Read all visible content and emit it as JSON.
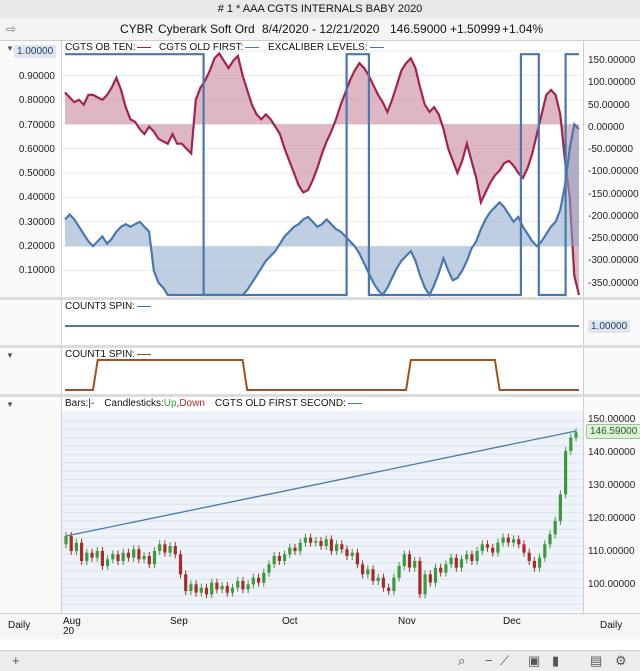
{
  "window_title": "# 1 * AAA  CGTS INTERNALS BABY 2020",
  "header": {
    "symbol": "CYBR",
    "name": "Cyberark Soft Ord",
    "range": "8/4/2020 - 12/21/2020",
    "price": "146.59000",
    "change": "+1.50999",
    "change_pct": "+1.04%"
  },
  "panel1": {
    "labels": [
      "CGTS OB TEN:",
      "CGTS OLD FIRST:",
      "EXCALIBER LEVELS:"
    ],
    "label_colors": [
      "#a3234f",
      "#4a78ad",
      "#4a78ad"
    ],
    "left_ticks": [
      "1.00000",
      "0.90000",
      "0.80000",
      "0.70000",
      "0.60000",
      "0.50000",
      "0.40000",
      "0.30000",
      "0.20000",
      "0.10000"
    ],
    "right_ticks": [
      "150.00000",
      "100.00000",
      "50.00000",
      "0.00000",
      "-50.00000",
      "-100.00000",
      "-150.00000",
      "-200.00000",
      "-250.00000",
      "-300.00000",
      "-350.00000"
    ]
  },
  "panel2": {
    "label": "COUNT3 SPIN:",
    "value": "1.00000"
  },
  "panel3": {
    "label": "COUNT1 SPIN:"
  },
  "panel4": {
    "legend_bars": "Bars:",
    "legend_bars_sym": "|-",
    "legend_candles": "Candlesticks:",
    "legend_up": "Up",
    "legend_comma": ",",
    "legend_down": "Down",
    "legend_old": "CGTS OLD FIRST SECOND:",
    "right_ticks": [
      "150.00000",
      "140.00000",
      "130.00000",
      "120.00000",
      "110.00000",
      "100.00000"
    ],
    "last_price": "146.59000"
  },
  "xaxis": {
    "months": [
      "Aug",
      "Sep",
      "Oct",
      "Nov",
      "Dec"
    ],
    "year": "20",
    "period_left": "Daily",
    "period_right": "Daily"
  },
  "colors": {
    "crimson": "#a3234f",
    "steel": "#4a78ad",
    "brown": "#a0521c",
    "up": "#3c9a3c",
    "down": "#a82a2a"
  },
  "chart_data": [
    {
      "type": "line",
      "title": "",
      "series": [
        {
          "name": "CGTS OB TEN",
          "axis": "left",
          "baseline": 0.7,
          "values": [
            0.83,
            0.81,
            0.79,
            0.8,
            0.78,
            0.82,
            0.82,
            0.81,
            0.8,
            0.82,
            0.85,
            0.89,
            0.84,
            0.77,
            0.72,
            0.71,
            0.68,
            0.66,
            0.69,
            0.67,
            0.64,
            0.63,
            0.62,
            0.66,
            0.62,
            0.62,
            0.6,
            0.58,
            0.8,
            0.85,
            0.88,
            0.92,
            0.97,
            0.99,
            0.96,
            0.93,
            0.96,
            0.98,
            0.9,
            0.84,
            0.78,
            0.74,
            0.72,
            0.74,
            0.72,
            0.69,
            0.66,
            0.6,
            0.55,
            0.5,
            0.45,
            0.42,
            0.43,
            0.47,
            0.52,
            0.58,
            0.63,
            0.67,
            0.72,
            0.78,
            0.83,
            0.88,
            0.92,
            0.95,
            0.93,
            0.9,
            0.86,
            0.82,
            0.79,
            0.75,
            0.8,
            0.86,
            0.92,
            0.95,
            0.97,
            0.93,
            0.85,
            0.78,
            0.75,
            0.77,
            0.74,
            0.68,
            0.6,
            0.55,
            0.5,
            0.55,
            0.62,
            0.55,
            0.48,
            0.38,
            0.42,
            0.46,
            0.49,
            0.51,
            0.54,
            0.55,
            0.53,
            0.5,
            0.48,
            0.52,
            0.58,
            0.66,
            0.74,
            0.82,
            0.84,
            0.82,
            0.74,
            0.55,
            0.4,
            0.08,
            0.0
          ]
        },
        {
          "name": "CGTS OLD FIRST",
          "axis": "left",
          "baseline": 0.2,
          "values": [
            0.31,
            0.33,
            0.31,
            0.28,
            0.25,
            0.22,
            0.2,
            0.22,
            0.24,
            0.21,
            0.23,
            0.26,
            0.28,
            0.29,
            0.28,
            0.29,
            0.3,
            0.28,
            0.26,
            0.1,
            0.05,
            0.03,
            0.0,
            0.0,
            0.0,
            0.0,
            0.0,
            0.0,
            0.0,
            0.0,
            0.0,
            0.0,
            0.0,
            0.0,
            0.0,
            0.0,
            0.0,
            0.0,
            0.0,
            0.02,
            0.05,
            0.08,
            0.11,
            0.14,
            0.16,
            0.18,
            0.21,
            0.24,
            0.26,
            0.28,
            0.29,
            0.31,
            0.32,
            0.3,
            0.28,
            0.29,
            0.31,
            0.29,
            0.27,
            0.26,
            0.24,
            0.22,
            0.2,
            0.17,
            0.13,
            0.09,
            0.05,
            0.02,
            0.0,
            0.03,
            0.07,
            0.11,
            0.14,
            0.16,
            0.18,
            0.14,
            0.08,
            0.03,
            0.0,
            0.04,
            0.09,
            0.15,
            0.1,
            0.06,
            0.07,
            0.1,
            0.14,
            0.19,
            0.22,
            0.27,
            0.31,
            0.34,
            0.36,
            0.38,
            0.36,
            0.33,
            0.3,
            0.32,
            0.28,
            0.25,
            0.22,
            0.2,
            0.22,
            0.25,
            0.28,
            0.3,
            0.35,
            0.45,
            0.6,
            0.7,
            0.68
          ]
        },
        {
          "name": "EXCALIBER LEVELS",
          "axis": "right",
          "values": [
            153,
            153,
            153,
            153,
            153,
            153,
            153,
            153,
            153,
            153,
            153,
            153,
            153,
            153,
            153,
            153,
            153,
            153,
            153,
            153,
            153,
            153,
            153,
            153,
            153,
            153,
            153,
            153,
            153,
            153,
            153,
            -375,
            -375,
            -375,
            -375,
            -375,
            -375,
            -375,
            -375,
            -375,
            -375,
            -375,
            -375,
            -375,
            -375,
            -375,
            -375,
            -375,
            -375,
            -375,
            -375,
            -375,
            -375,
            -375,
            -375,
            -375,
            -375,
            -375,
            -375,
            -375,
            -375,
            -375,
            -375,
            153,
            153,
            153,
            153,
            153,
            -375,
            -375,
            -375,
            -375,
            -375,
            -375,
            -375,
            -375,
            -375,
            -375,
            -375,
            -375,
            -375,
            -375,
            -375,
            -375,
            -375,
            -375,
            -375,
            -375,
            -375,
            -375,
            -375,
            -375,
            -375,
            -375,
            -375,
            -375,
            -375,
            -375,
            -375,
            -375,
            -375,
            -375,
            153,
            153,
            153,
            153,
            -375,
            -375,
            -375,
            -375,
            -375,
            -375,
            153,
            153,
            153,
            153
          ]
        }
      ],
      "ylim_left": [
        0,
        1.0
      ],
      "ylim_right": [
        -375,
        160
      ]
    },
    {
      "type": "line",
      "series": [
        {
          "name": "COUNT3 SPIN",
          "values": [
            1,
            1,
            1,
            1,
            1,
            1,
            1,
            1,
            1,
            1,
            1,
            1,
            1,
            1,
            1,
            1,
            1,
            1,
            1,
            1,
            1,
            1,
            1,
            1,
            1,
            1,
            1,
            1,
            1,
            1,
            1,
            1,
            1,
            1,
            1,
            1,
            1,
            1,
            1,
            1,
            1,
            1,
            1,
            1,
            1,
            1,
            1,
            1,
            1,
            1,
            1,
            1,
            1,
            1,
            1,
            1,
            1,
            1,
            1,
            1,
            1,
            1,
            1,
            1,
            1,
            1,
            1,
            1,
            1,
            1,
            1,
            1,
            1,
            1,
            1,
            1,
            1,
            1,
            1,
            1,
            1,
            1,
            1,
            1,
            1,
            1,
            1,
            1,
            1,
            1,
            1,
            1,
            1,
            1,
            1,
            1,
            1,
            1,
            1,
            1,
            1,
            1,
            1,
            1,
            1,
            1,
            1,
            1,
            1,
            1,
            1
          ]
        }
      ]
    },
    {
      "type": "line",
      "series": [
        {
          "name": "COUNT1 SPIN",
          "values": [
            0,
            0,
            0,
            0,
            0,
            0,
            0,
            1,
            1,
            1,
            1,
            1,
            1,
            1,
            1,
            1,
            1,
            1,
            1,
            1,
            1,
            1,
            1,
            1,
            1,
            1,
            1,
            1,
            1,
            1,
            1,
            1,
            1,
            1,
            1,
            1,
            1,
            1,
            1,
            0,
            0,
            0,
            0,
            0,
            0,
            0,
            0,
            0,
            0,
            0,
            0,
            0,
            0,
            0,
            0,
            0,
            0,
            0,
            0,
            0,
            0,
            0,
            0,
            0,
            0,
            0,
            0,
            0,
            0,
            0,
            0,
            0,
            0,
            0,
            1,
            1,
            1,
            1,
            1,
            1,
            1,
            1,
            1,
            1,
            1,
            1,
            1,
            1,
            1,
            1,
            1,
            1,
            1,
            0,
            0,
            0,
            0,
            0,
            0,
            0,
            0,
            0,
            0,
            0,
            0,
            0,
            0,
            0,
            0,
            0,
            0
          ]
        }
      ]
    },
    {
      "type": "candlestick",
      "ylim": [
        93,
        153
      ],
      "candles": [
        {
          "o": 113.0,
          "c": 115.5
        },
        {
          "o": 115.5,
          "c": 111.0
        },
        {
          "o": 111.0,
          "c": 113.5
        },
        {
          "o": 113.5,
          "c": 108.0
        },
        {
          "o": 108.0,
          "c": 110.5
        },
        {
          "o": 110.5,
          "c": 109.0
        },
        {
          "o": 109.0,
          "c": 111.0
        },
        {
          "o": 111.0,
          "c": 106.5
        },
        {
          "o": 106.5,
          "c": 108.5
        },
        {
          "o": 108.5,
          "c": 110.0
        },
        {
          "o": 110.0,
          "c": 108.0
        },
        {
          "o": 108.0,
          "c": 110.5
        },
        {
          "o": 110.5,
          "c": 109.0
        },
        {
          "o": 109.0,
          "c": 111.5
        },
        {
          "o": 111.5,
          "c": 108.5
        },
        {
          "o": 108.5,
          "c": 109.5
        },
        {
          "o": 109.5,
          "c": 107.0
        },
        {
          "o": 107.0,
          "c": 111.0
        },
        {
          "o": 111.0,
          "c": 113.0
        },
        {
          "o": 113.0,
          "c": 110.5
        },
        {
          "o": 110.5,
          "c": 112.5
        },
        {
          "o": 112.5,
          "c": 110.0
        },
        {
          "o": 110.0,
          "c": 104.0
        },
        {
          "o": 104.0,
          "c": 99.0
        },
        {
          "o": 99.0,
          "c": 101.0
        },
        {
          "o": 101.0,
          "c": 98.5
        },
        {
          "o": 98.5,
          "c": 100.0
        },
        {
          "o": 100.0,
          "c": 98.0
        },
        {
          "o": 98.0,
          "c": 101.5
        },
        {
          "o": 101.5,
          "c": 99.5
        },
        {
          "o": 99.5,
          "c": 100.5
        },
        {
          "o": 100.5,
          "c": 98.5
        },
        {
          "o": 98.5,
          "c": 100.0
        },
        {
          "o": 100.0,
          "c": 102.0
        },
        {
          "o": 102.0,
          "c": 99.5
        },
        {
          "o": 99.5,
          "c": 101.0
        },
        {
          "o": 101.0,
          "c": 103.0
        },
        {
          "o": 103.0,
          "c": 101.5
        },
        {
          "o": 101.5,
          "c": 104.5
        },
        {
          "o": 104.5,
          "c": 107.0
        },
        {
          "o": 107.0,
          "c": 109.5
        },
        {
          "o": 109.5,
          "c": 108.0
        },
        {
          "o": 108.0,
          "c": 110.0
        },
        {
          "o": 110.0,
          "c": 112.0
        },
        {
          "o": 112.0,
          "c": 111.0
        },
        {
          "o": 111.0,
          "c": 113.5
        },
        {
          "o": 113.5,
          "c": 115.0
        },
        {
          "o": 115.0,
          "c": 113.5
        },
        {
          "o": 113.5,
          "c": 114.0
        },
        {
          "o": 114.0,
          "c": 112.5
        },
        {
          "o": 112.5,
          "c": 114.5
        },
        {
          "o": 114.5,
          "c": 111.0
        },
        {
          "o": 111.0,
          "c": 113.0
        },
        {
          "o": 113.0,
          "c": 111.5
        },
        {
          "o": 111.5,
          "c": 109.5
        },
        {
          "o": 109.5,
          "c": 110.5
        },
        {
          "o": 110.5,
          "c": 107.0
        },
        {
          "o": 107.0,
          "c": 104.0
        },
        {
          "o": 104.0,
          "c": 105.5
        },
        {
          "o": 105.5,
          "c": 102.0
        },
        {
          "o": 102.0,
          "c": 103.0
        },
        {
          "o": 103.0,
          "c": 100.0
        },
        {
          "o": 100.0,
          "c": 99.0
        },
        {
          "o": 99.0,
          "c": 103.0
        },
        {
          "o": 103.0,
          "c": 106.5
        },
        {
          "o": 106.5,
          "c": 110.0
        },
        {
          "o": 110.0,
          "c": 106.0
        },
        {
          "o": 106.0,
          "c": 108.0
        },
        {
          "o": 108.0,
          "c": 98.0
        },
        {
          "o": 98.0,
          "c": 104.0
        },
        {
          "o": 104.0,
          "c": 101.5
        },
        {
          "o": 101.5,
          "c": 106.0
        },
        {
          "o": 106.0,
          "c": 104.5
        },
        {
          "o": 104.5,
          "c": 107.0
        },
        {
          "o": 107.0,
          "c": 109.0
        },
        {
          "o": 109.0,
          "c": 106.0
        },
        {
          "o": 106.0,
          "c": 108.5
        },
        {
          "o": 108.5,
          "c": 110.0
        },
        {
          "o": 110.0,
          "c": 108.0
        },
        {
          "o": 108.0,
          "c": 111.0
        },
        {
          "o": 111.0,
          "c": 113.0
        },
        {
          "o": 113.0,
          "c": 112.0
        },
        {
          "o": 112.0,
          "c": 110.5
        },
        {
          "o": 110.5,
          "c": 113.5
        },
        {
          "o": 113.5,
          "c": 115.0
        },
        {
          "o": 115.0,
          "c": 113.5
        },
        {
          "o": 113.5,
          "c": 114.5
        },
        {
          "o": 114.5,
          "c": 113.0
        },
        {
          "o": 113.0,
          "c": 110.5
        },
        {
          "o": 110.5,
          "c": 108.0
        },
        {
          "o": 108.0,
          "c": 106.0
        },
        {
          "o": 106.0,
          "c": 109.0
        },
        {
          "o": 109.0,
          "c": 113.0
        },
        {
          "o": 113.0,
          "c": 116.0
        },
        {
          "o": 116.0,
          "c": 120.0
        },
        {
          "o": 120.0,
          "c": 128.0
        },
        {
          "o": 128.0,
          "c": 141.0
        },
        {
          "o": 141.0,
          "c": 145.0
        },
        {
          "o": 145.0,
          "c": 146.6
        }
      ],
      "trend": {
        "name": "CGTS OLD FIRST SECOND",
        "start": 115.5,
        "end": 147.0
      }
    }
  ]
}
